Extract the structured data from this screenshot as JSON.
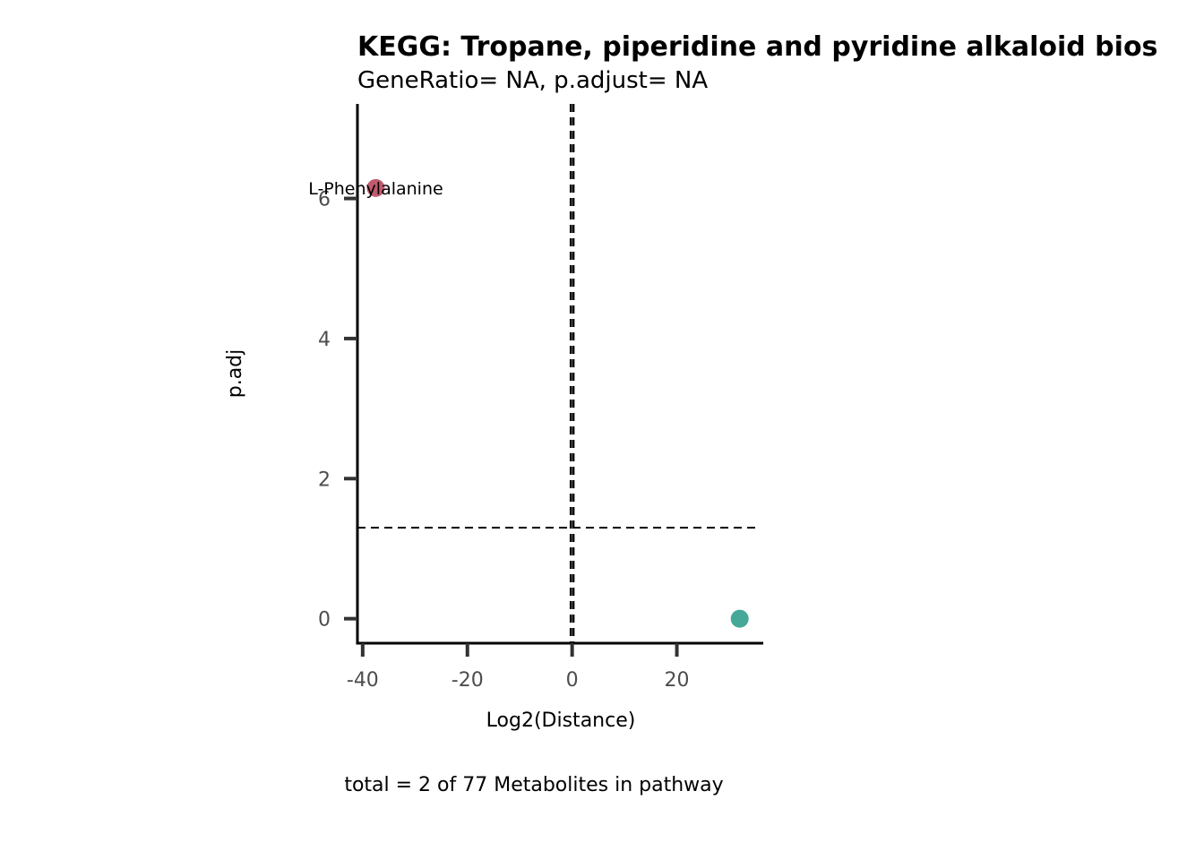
{
  "chart_data": {
    "type": "scatter",
    "title": "KEGG: Tropane, piperidine and pyridine alkaloid bios",
    "subtitle": "GeneRatio= NA, p.adjust= NA",
    "xlabel": "Log2(Distance)",
    "ylabel": "p.adj",
    "caption": "total = 2 of 77 Metabolites in pathway",
    "xlim": [
      -41,
      36.5
    ],
    "ylim": [
      -0.35,
      7.35
    ],
    "xticks": [
      -40,
      -20,
      0,
      20
    ],
    "xtick_labels": [
      "-40",
      "-20",
      "0",
      "20"
    ],
    "yticks": [
      0,
      2,
      4,
      6
    ],
    "ytick_labels": [
      "0",
      "2",
      "4",
      "6"
    ],
    "grid": false,
    "legend": "none",
    "reference_lines": {
      "vertical": [
        -0.25,
        0.25
      ],
      "horizontal": [
        1.3
      ]
    },
    "points": [
      {
        "x": -37.5,
        "y": 6.15,
        "label": "L-Phenylalanine",
        "color": "#c05a6e"
      },
      {
        "x": 32,
        "y": 0.0,
        "label": "",
        "color": "#45a898"
      }
    ]
  }
}
